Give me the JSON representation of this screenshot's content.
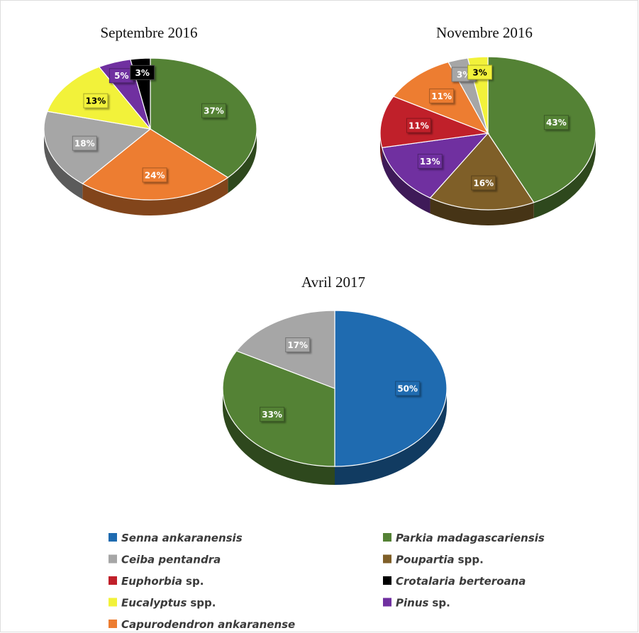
{
  "chart_data": [
    {
      "type": "pie",
      "title": "Septembre 2016",
      "values": [
        37,
        24,
        18,
        13,
        5,
        3
      ],
      "value_labels": [
        "37%",
        "24%",
        "18%",
        "13%",
        "5%",
        "3%"
      ],
      "colors": [
        "#548235",
        "#ed7d31",
        "#a6a6a6",
        "#f2f23a",
        "#7030a0",
        "#000000"
      ]
    },
    {
      "type": "pie",
      "title": "Novembre 2016",
      "values": [
        43,
        16,
        13,
        11,
        11,
        3,
        3
      ],
      "value_labels": [
        "43%",
        "16%",
        "13%",
        "11%",
        "11%",
        "3%",
        "3%"
      ],
      "colors": [
        "#548235",
        "#7f5f28",
        "#7030a0",
        "#c0202a",
        "#ed7d31",
        "#a6a6a6",
        "#f2f23a"
      ]
    },
    {
      "type": "pie",
      "title": "Avril 2017",
      "values": [
        50,
        33,
        17
      ],
      "value_labels": [
        "50%",
        "33%",
        "17%"
      ],
      "colors": [
        "#1f6bb0",
        "#548235",
        "#a6a6a6"
      ]
    }
  ],
  "legend": [
    {
      "italic": "Senna ankaranensis",
      "color": "#1f6bb0"
    },
    {
      "italic": "Parkia madagascariensis",
      "color": "#548235"
    },
    {
      "italic": "Ceiba pentandra",
      "color": "#a6a6a6"
    },
    {
      "italic": "Poupartia",
      "plain": "spp.",
      "color": "#7f5f28"
    },
    {
      "italic": "Euphorbia",
      "plain": "sp.",
      "color": "#c0202a"
    },
    {
      "italic": "Crotalaria berteroana",
      "color": "#000000"
    },
    {
      "italic": "Eucalyptus",
      "plain": "spp.",
      "color": "#f2f23a"
    },
    {
      "italic": "Pinus",
      "plain": "sp.",
      "color": "#7030a0"
    },
    {
      "italic": "Capurodendron ankaranense",
      "color": "#ed7d31"
    }
  ]
}
